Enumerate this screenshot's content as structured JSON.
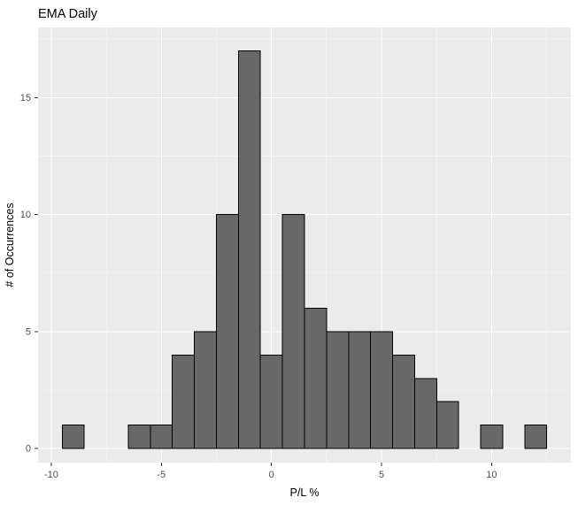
{
  "chart_data": {
    "type": "bar",
    "subtype": "histogram",
    "title": "EMA Daily",
    "xlabel": "P/L %",
    "ylabel": "# of Occurrences",
    "binwidth": 1,
    "bins": [
      {
        "center": -9,
        "count": 1
      },
      {
        "center": -6,
        "count": 1
      },
      {
        "center": -5,
        "count": 1
      },
      {
        "center": -4,
        "count": 4
      },
      {
        "center": -3,
        "count": 5
      },
      {
        "center": -2,
        "count": 10
      },
      {
        "center": -1,
        "count": 17
      },
      {
        "center": 0,
        "count": 4
      },
      {
        "center": 1,
        "count": 10
      },
      {
        "center": 2,
        "count": 6
      },
      {
        "center": 3,
        "count": 5
      },
      {
        "center": 4,
        "count": 5
      },
      {
        "center": 5,
        "count": 5
      },
      {
        "center": 6,
        "count": 4
      },
      {
        "center": 7,
        "count": 3
      },
      {
        "center": 8,
        "count": 2
      },
      {
        "center": 10,
        "count": 1
      },
      {
        "center": 12,
        "count": 1
      }
    ],
    "x_ticks": [
      -10,
      -5,
      0,
      5,
      10
    ],
    "y_ticks": [
      0,
      5,
      10,
      15
    ],
    "x_minor": [
      -7.5,
      -2.5,
      2.5,
      7.5,
      12.5
    ],
    "y_minor": [
      2.5,
      7.5,
      12.5,
      17.5
    ],
    "xlim": [
      -10.6,
      13.6
    ],
    "ylim": [
      -0.6,
      18.0
    ],
    "grid": true,
    "legend": "none",
    "colors": {
      "panel_bg": "#EBEBEB",
      "grid_major": "#FFFFFF",
      "grid_minor": "#FFFFFF",
      "bar_fill": "#686868",
      "bar_stroke": "#000000",
      "tick_mark": "#333333",
      "tick_label": "#4D4D4D",
      "title": "#000000"
    }
  }
}
